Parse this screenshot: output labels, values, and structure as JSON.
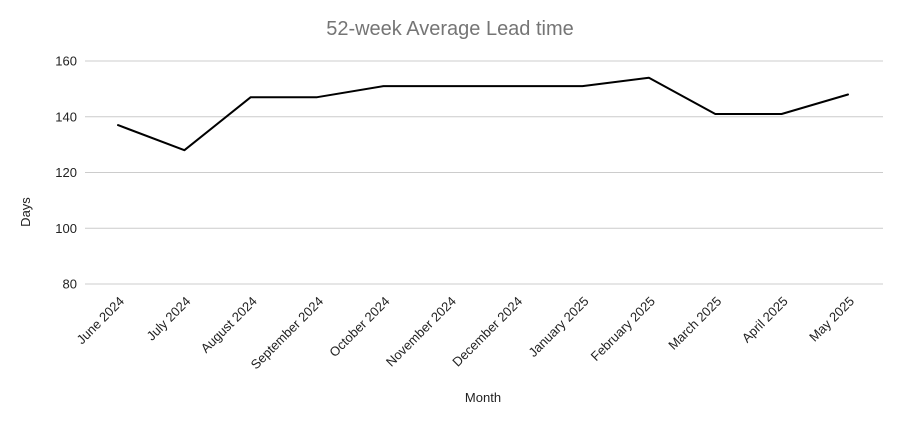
{
  "chart_data": {
    "type": "line",
    "title": "52-week Average Lead time",
    "xlabel": "Month",
    "ylabel": "Days",
    "ylim": [
      80,
      160
    ],
    "yticks": [
      80,
      100,
      120,
      140,
      160
    ],
    "grid": true,
    "legend": "none",
    "categories": [
      "June 2024",
      "July 2024",
      "August 2024",
      "September 2024",
      "October 2024",
      "November 2024",
      "December 2024",
      "January 2025",
      "February 2025",
      "March 2025",
      "April 2025",
      "May 2025"
    ],
    "series": [
      {
        "name": "52-week Average Lead time",
        "color": "#000000",
        "values": [
          137,
          128,
          147,
          147,
          151,
          151,
          151,
          151,
          154,
          141,
          141,
          148
        ]
      }
    ]
  }
}
